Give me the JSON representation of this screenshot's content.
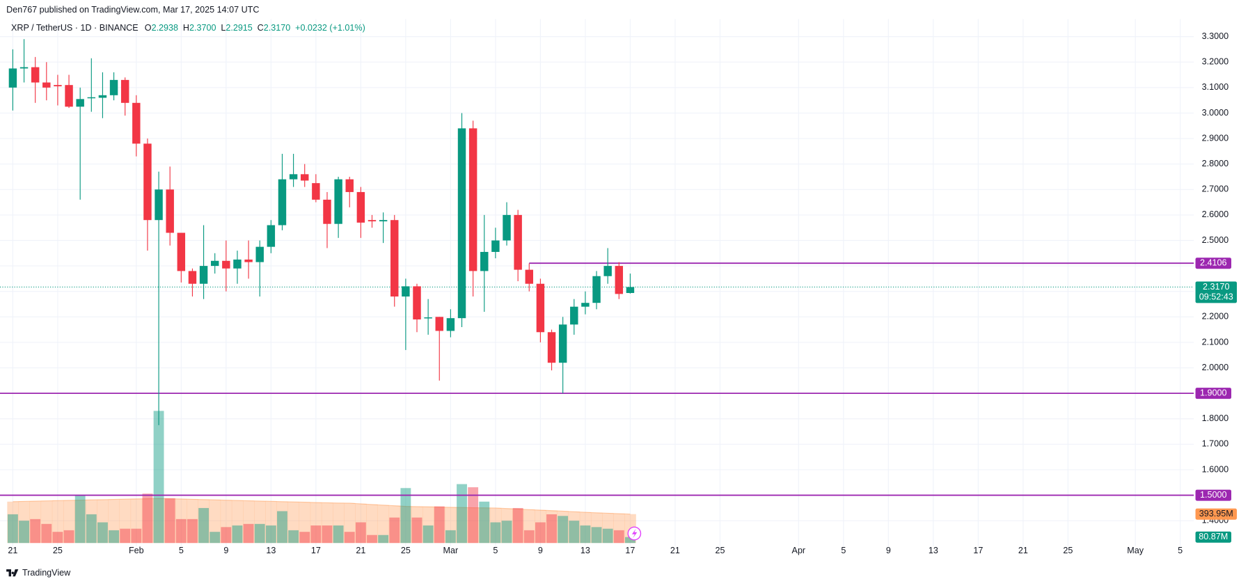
{
  "header": "Den767 published on TradingView.com, Mar 17, 2025 14:07 UTC",
  "footer": "TradingView",
  "chart_data": {
    "type": "candlestick",
    "title": "XRP / TetherUS · 1D · BINANCE",
    "ohlc": [
      {
        "label": "O",
        "value": "2.2938"
      },
      {
        "label": "H",
        "value": "2.3700"
      },
      {
        "label": "L",
        "value": "2.2915"
      },
      {
        "label": "C",
        "value": "2.3170"
      }
    ],
    "change": "+0.0232 (+1.01%)",
    "up_color": "#089981",
    "down_color": "#f23645",
    "grid": true,
    "x": [
      "2025-01-21",
      "2025-01-22",
      "2025-01-23",
      "2025-01-24",
      "2025-01-25",
      "2025-01-26",
      "2025-01-27",
      "2025-01-28",
      "2025-01-29",
      "2025-01-30",
      "2025-01-31",
      "2025-02-01",
      "2025-02-02",
      "2025-02-03",
      "2025-02-04",
      "2025-02-05",
      "2025-02-06",
      "2025-02-07",
      "2025-02-08",
      "2025-02-09",
      "2025-02-10",
      "2025-02-11",
      "2025-02-12",
      "2025-02-13",
      "2025-02-14",
      "2025-02-15",
      "2025-02-16",
      "2025-02-17",
      "2025-02-18",
      "2025-02-19",
      "2025-02-20",
      "2025-02-21",
      "2025-02-22",
      "2025-02-23",
      "2025-02-24",
      "2025-02-25",
      "2025-02-26",
      "2025-02-27",
      "2025-02-28",
      "2025-03-01",
      "2025-03-02",
      "2025-03-03",
      "2025-03-04",
      "2025-03-05",
      "2025-03-06",
      "2025-03-07",
      "2025-03-08",
      "2025-03-09",
      "2025-03-10",
      "2025-03-11",
      "2025-03-12",
      "2025-03-13",
      "2025-03-14",
      "2025-03-15",
      "2025-03-16",
      "2025-03-17"
    ],
    "open": [
      3.1,
      3.175,
      3.18,
      3.12,
      3.11,
      3.11,
      3.025,
      3.058,
      3.06,
      3.07,
      3.13,
      3.04,
      2.88,
      2.58,
      2.7,
      2.53,
      2.38,
      2.33,
      2.4,
      2.42,
      2.39,
      2.425,
      2.415,
      2.475,
      2.56,
      2.74,
      2.76,
      2.725,
      2.66,
      2.565,
      2.74,
      2.69,
      2.58,
      2.575,
      2.58,
      2.28,
      2.32,
      2.194,
      2.2,
      2.145,
      2.195,
      2.94,
      2.38,
      2.455,
      2.5,
      2.6,
      2.385,
      2.33,
      2.14,
      2.02,
      2.17,
      2.24,
      2.255,
      2.36,
      2.4,
      2.2938
    ],
    "high": [
      3.25,
      3.29,
      3.22,
      3.2,
      3.15,
      3.15,
      3.1,
      3.215,
      3.16,
      3.16,
      3.14,
      3.07,
      2.9,
      2.77,
      2.79,
      2.53,
      2.39,
      2.56,
      2.45,
      2.5,
      2.46,
      2.5,
      2.5,
      2.58,
      2.84,
      2.84,
      2.8,
      2.76,
      2.69,
      2.75,
      2.75,
      2.71,
      2.6,
      2.61,
      2.6,
      2.35,
      2.33,
      2.27,
      2.2,
      2.23,
      3.0,
      2.97,
      2.6,
      2.55,
      2.65,
      2.62,
      2.41,
      2.35,
      2.15,
      2.2,
      2.27,
      2.3,
      2.38,
      2.47,
      2.415,
      2.37
    ],
    "low": [
      3.01,
      3.12,
      3.04,
      3.05,
      3.03,
      3.02,
      2.66,
      3.005,
      2.98,
      3.05,
      2.99,
      2.83,
      2.46,
      1.775,
      2.48,
      2.335,
      2.28,
      2.27,
      2.37,
      2.3,
      2.33,
      2.35,
      2.28,
      2.45,
      2.54,
      2.71,
      2.71,
      2.65,
      2.47,
      2.51,
      2.63,
      2.51,
      2.55,
      2.49,
      2.24,
      2.07,
      2.14,
      2.13,
      1.95,
      2.12,
      2.16,
      2.28,
      2.22,
      2.43,
      2.48,
      2.34,
      2.3,
      2.1,
      1.99,
      1.9,
      2.13,
      2.21,
      2.23,
      2.33,
      2.27,
      2.2915
    ],
    "close": [
      3.175,
      3.18,
      3.12,
      3.1,
      3.105,
      3.025,
      3.055,
      3.062,
      3.07,
      3.13,
      3.04,
      2.88,
      2.58,
      2.7,
      2.53,
      2.38,
      2.33,
      2.4,
      2.42,
      2.39,
      2.425,
      2.415,
      2.475,
      2.56,
      2.74,
      2.76,
      2.735,
      2.66,
      2.565,
      2.74,
      2.69,
      2.57,
      2.575,
      2.58,
      2.28,
      2.32,
      2.19,
      2.198,
      2.145,
      2.195,
      2.94,
      2.38,
      2.455,
      2.5,
      2.6,
      2.385,
      2.33,
      2.14,
      2.02,
      2.17,
      2.24,
      2.255,
      2.36,
      2.4,
      2.29,
      2.317
    ],
    "xlim": [
      "2025-01-20",
      "2025-05-06"
    ],
    "xticks": [
      {
        "value": "2025-01-21",
        "label": "21"
      },
      {
        "value": "2025-01-25",
        "label": "25"
      },
      {
        "value": "2025-02-01",
        "label": "Feb"
      },
      {
        "value": "2025-02-05",
        "label": "5"
      },
      {
        "value": "2025-02-09",
        "label": "9"
      },
      {
        "value": "2025-02-13",
        "label": "13"
      },
      {
        "value": "2025-02-17",
        "label": "17"
      },
      {
        "value": "2025-02-21",
        "label": "21"
      },
      {
        "value": "2025-02-25",
        "label": "25"
      },
      {
        "value": "2025-03-01",
        "label": "Mar"
      },
      {
        "value": "2025-03-05",
        "label": "5"
      },
      {
        "value": "2025-03-09",
        "label": "9"
      },
      {
        "value": "2025-03-13",
        "label": "13"
      },
      {
        "value": "2025-03-17",
        "label": "17"
      },
      {
        "value": "2025-03-21",
        "label": "21"
      },
      {
        "value": "2025-03-25",
        "label": "25"
      },
      {
        "value": "2025-04-01",
        "label": "Apr"
      },
      {
        "value": "2025-04-05",
        "label": "5"
      },
      {
        "value": "2025-04-09",
        "label": "9"
      },
      {
        "value": "2025-04-13",
        "label": "13"
      },
      {
        "value": "2025-04-17",
        "label": "17"
      },
      {
        "value": "2025-04-21",
        "label": "21"
      },
      {
        "value": "2025-04-25",
        "label": "25"
      },
      {
        "value": "2025-05-01",
        "label": "May"
      },
      {
        "value": "2025-05-05",
        "label": "5"
      }
    ],
    "ylim": [
      1.3125,
      3.35625
    ],
    "yticks": [
      {
        "value": 1.4,
        "label": "1.4000"
      },
      {
        "value": 1.5,
        "label": "1.5000"
      },
      {
        "value": 1.6,
        "label": "1.6000"
      },
      {
        "value": 1.7,
        "label": "1.7000"
      },
      {
        "value": 1.8,
        "label": "1.8000"
      },
      {
        "value": 1.9,
        "label": "1.9000"
      },
      {
        "value": 2.0,
        "label": "2.0000"
      },
      {
        "value": 2.1,
        "label": "2.1000"
      },
      {
        "value": 2.2,
        "label": "2.2000"
      },
      {
        "value": 2.3,
        "label": "2.3000"
      },
      {
        "value": 2.4,
        "label": "2.4000"
      },
      {
        "value": 2.5,
        "label": "2.5000"
      },
      {
        "value": 2.6,
        "label": "2.6000"
      },
      {
        "value": 2.7,
        "label": "2.7000"
      },
      {
        "value": 2.8,
        "label": "2.8000"
      },
      {
        "value": 2.9,
        "label": "2.9000"
      },
      {
        "value": 3.0,
        "label": "3.0000"
      },
      {
        "value": 3.1,
        "label": "3.1000"
      },
      {
        "value": 3.2,
        "label": "3.2000"
      },
      {
        "value": 3.3,
        "label": "3.3000"
      }
    ],
    "levels": [
      {
        "value": 2.4106,
        "label": "2.4106",
        "x_start": "2025-03-08"
      },
      {
        "value": 1.9,
        "label": "1.9000"
      },
      {
        "value": 1.5,
        "label": "1.5000"
      }
    ],
    "level_color": "#9c27b0",
    "last_price": {
      "value": 2.317,
      "label": "2.3170",
      "countdown": "09:52:43"
    },
    "volume": {
      "ylim": [
        0,
        2800
      ],
      "values": [
        391,
        304,
        326,
        260,
        152,
        174,
        651,
        391,
        282,
        174,
        195,
        195,
        673,
        1801,
        608,
        326,
        326,
        477,
        152,
        217,
        239,
        260,
        260,
        239,
        434,
        174,
        152,
        239,
        239,
        239,
        152,
        282,
        109,
        109,
        347,
        749,
        347,
        239,
        499,
        174,
        803,
        760,
        564,
        282,
        304,
        477,
        174,
        282,
        391,
        369,
        304,
        239,
        217,
        195,
        174,
        80.87
      ],
      "last_label": {
        "value": 80.87,
        "label": "80.87M"
      },
      "ma": [
        564,
        567,
        571,
        574,
        578,
        581,
        584,
        588,
        591,
        594,
        598,
        601,
        604,
        608,
        604,
        600,
        596,
        592,
        588,
        584,
        580,
        576,
        572,
        568,
        564,
        560,
        556,
        552,
        548,
        545,
        543,
        534,
        525,
        516,
        508,
        499,
        496,
        493,
        490,
        487,
        484,
        481,
        479,
        477,
        470,
        463,
        455,
        448,
        441,
        434,
        426,
        419,
        412,
        406,
        400,
        393.95
      ],
      "ma_label": {
        "value": 393.95,
        "label": "393.95M"
      },
      "ma_color": "#ff9850"
    }
  }
}
